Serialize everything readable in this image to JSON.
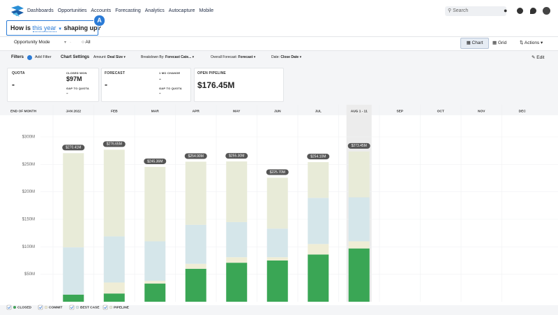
{
  "nav": {
    "links": [
      "Dashboards",
      "Opportunities",
      "Accounts",
      "Forecasting",
      "Analytics",
      "Autocapture",
      "Mobile"
    ],
    "search": "Search"
  },
  "header": {
    "prefix": "How is",
    "period": "this year",
    "suffix": "shaping up?",
    "badge": "A"
  },
  "toolbar": {
    "mode": "Opportunity Mode",
    "scope": "All",
    "chart": "Chart",
    "grid": "Grid",
    "actions": "Actions"
  },
  "filters": {
    "label": "Filters",
    "add": "Add Filter",
    "settings": "Chart Settings",
    "items": [
      {
        "key": "Amount:",
        "value": "Deal Size"
      },
      {
        "key": "Breakdown By:",
        "value": "Forecast Cate..."
      },
      {
        "key": "Overall Forecast:",
        "value": "Forecast"
      },
      {
        "key": "Date:",
        "value": "Close Date"
      }
    ],
    "edit": "Edit"
  },
  "cards": {
    "quota": {
      "label": "QUOTA",
      "value": "-"
    },
    "closed_won": {
      "label": "CLOSED WON",
      "value": "$97M",
      "gap_label": "GAP TO QUOTA",
      "gap": "-"
    },
    "forecast": {
      "label": "FORECAST",
      "value": "-"
    },
    "change": {
      "label": "1 MO CHANGE",
      "value": "-",
      "gap_label": "GAP TO QUOTA",
      "gap": "-"
    },
    "pipeline": {
      "label": "OPEN PIPELINE",
      "value": "$176.45M"
    }
  },
  "chart_data": {
    "type": "stacked-bar",
    "x_label": "END OF MONTH",
    "categories": [
      "JAN 2022",
      "FEB",
      "MAR",
      "APR",
      "MAY",
      "JUN",
      "JUL",
      "AUG 1 - 11",
      "SEP",
      "OCT",
      "NOV",
      "DEC"
    ],
    "series": [
      {
        "name": "CLOSED",
        "color": "#3aa655",
        "values": [
          13,
          15,
          33,
          60,
          71,
          75,
          86,
          97,
          null,
          null,
          null,
          null
        ]
      },
      {
        "name": "COMMIT",
        "color": "#efedd6",
        "values": [
          0,
          20,
          5,
          9,
          10,
          6,
          19,
          13,
          null,
          null,
          null,
          null
        ]
      },
      {
        "name": "BEST CASE",
        "color": "#d5e6ea",
        "values": [
          86,
          84,
          72,
          71,
          64,
          52,
          84,
          80,
          null,
          null,
          null,
          null
        ]
      },
      {
        "name": "PIPELINE",
        "color": "#e8ebd8",
        "values": [
          171.41,
          157.65,
          135.36,
          114.9,
          110.3,
          92.7,
          65.1,
          83.45,
          null,
          null,
          null,
          null
        ]
      }
    ],
    "totals": {
      "values": [
        270.41,
        276.65,
        245.36,
        254.9,
        255.3,
        225.7,
        254.1,
        273.45,
        null,
        null,
        null,
        null
      ],
      "value_labels": [
        "$270.41M",
        "$276.65M",
        "$245.36M",
        "$254.90M",
        "$255.30M",
        "$225.70M",
        "$254.10M",
        "$273.45M",
        null,
        null,
        null,
        null
      ]
    },
    "highlight": "AUG 1 - 11",
    "ylim": [
      0,
      300
    ],
    "yticks": [
      {
        "value": 50,
        "label": "$50M"
      },
      {
        "value": 100,
        "label": "$100M"
      },
      {
        "value": 150,
        "label": "$150M"
      },
      {
        "value": 200,
        "label": "$200M"
      },
      {
        "value": 250,
        "label": "$250M"
      },
      {
        "value": 300,
        "label": "$300M"
      }
    ],
    "grid": true
  }
}
